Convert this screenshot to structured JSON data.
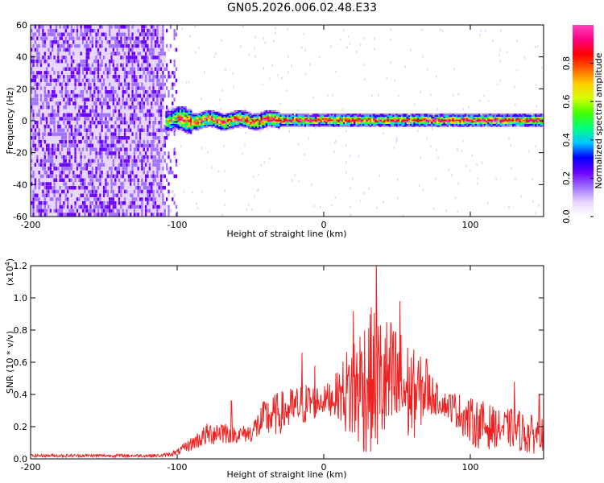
{
  "title": "GN05.2026.006.02.48.E33",
  "chart_data": [
    {
      "type": "heatmap",
      "xlabel": "Height of straight line (km)",
      "ylabel": "Frequency (Hz)",
      "xlim": [
        -200,
        150
      ],
      "ylim": [
        -60,
        60
      ],
      "x_ticks": [
        -200,
        -100,
        0,
        100
      ],
      "x_tick_labels": [
        "-200",
        "-100",
        "0",
        "100"
      ],
      "y_ticks": [
        60,
        40,
        20,
        0,
        -20,
        -40,
        -60
      ],
      "y_tick_labels": [
        "60",
        "40",
        "20",
        "0",
        "-20",
        "-40",
        "-60"
      ],
      "description_regions": [
        {
          "x_range": [
            -200,
            -105
          ],
          "y_range": [
            -60,
            60
          ],
          "level": 0.1
        },
        {
          "x_range": [
            -105,
            150
          ],
          "y_range": [
            -3,
            3
          ],
          "level": 0.9
        }
      ],
      "colorbar": {
        "label": "Normalized spectral amplitude",
        "range": [
          0.0,
          1.0
        ],
        "ticks": [
          0.0,
          0.2,
          0.4,
          0.6,
          0.8
        ],
        "tick_labels": [
          "0.0",
          "0.2",
          "0.4",
          "0.6",
          "0.8"
        ],
        "colors": [
          "#ffffff",
          "#e6d5ff",
          "#a070ff",
          "#6a00ff",
          "#0000ff",
          "#00c8ff",
          "#00ff80",
          "#40ff00",
          "#d0ff00",
          "#ffd000",
          "#ff6000",
          "#ff0000",
          "#ff0080",
          "#ff40c0"
        ]
      }
    },
    {
      "type": "line",
      "xlabel": "Height of straight line (km)",
      "ylabel": "SNR (10 * v/v)",
      "y_multiplier": "(x10",
      "y_multiplier_exp": "4",
      "xlim": [
        -200,
        150
      ],
      "ylim": [
        0.0,
        1.2
      ],
      "x_ticks": [
        -200,
        -100,
        0,
        100
      ],
      "x_tick_labels": [
        "-200",
        "-100",
        "0",
        "100"
      ],
      "y_ticks": [
        0.0,
        0.2,
        0.4,
        0.6,
        0.8,
        1.0,
        1.2
      ],
      "y_tick_labels": [
        "0.0",
        "0.2",
        "0.4",
        "0.6",
        "0.8",
        "1.0",
        "1.2"
      ],
      "series": [
        {
          "color": "#ee2222",
          "envelope_x": [
            -200,
            -150,
            -120,
            -110,
            -100,
            -90,
            -80,
            -70,
            -60,
            -50,
            -40,
            -30,
            -20,
            -10,
            0,
            10,
            20,
            30,
            40,
            50,
            60,
            70,
            80,
            90,
            100,
            110,
            120,
            130,
            140,
            150
          ],
          "envelope_lo": [
            0.01,
            0.01,
            0.01,
            0.01,
            0.02,
            0.05,
            0.08,
            0.09,
            0.1,
            0.1,
            0.12,
            0.15,
            0.18,
            0.22,
            0.28,
            0.25,
            0.05,
            0.02,
            0.03,
            0.05,
            0.1,
            0.25,
            0.28,
            0.2,
            0.08,
            0.05,
            0.08,
            0.06,
            0.02,
            0.05
          ],
          "envelope_hi": [
            0.03,
            0.03,
            0.03,
            0.03,
            0.06,
            0.14,
            0.22,
            0.26,
            0.2,
            0.22,
            0.38,
            0.42,
            0.45,
            0.48,
            0.45,
            0.55,
            0.8,
            0.95,
            0.92,
            0.85,
            0.7,
            0.6,
            0.42,
            0.42,
            0.38,
            0.36,
            0.3,
            0.32,
            0.28,
            0.25
          ],
          "peaks": [
            {
              "x": 36,
              "y": 1.22
            },
            {
              "x": 20,
              "y": 0.92
            },
            {
              "x": 52,
              "y": 0.98
            },
            {
              "x": -15,
              "y": 0.66
            },
            {
              "x": -6,
              "y": 0.58
            },
            {
              "x": 70,
              "y": 0.62
            },
            {
              "x": 130,
              "y": 0.48
            },
            {
              "x": -63,
              "y": 0.36
            },
            {
              "x": 147,
              "y": 0.4
            }
          ]
        }
      ]
    }
  ]
}
